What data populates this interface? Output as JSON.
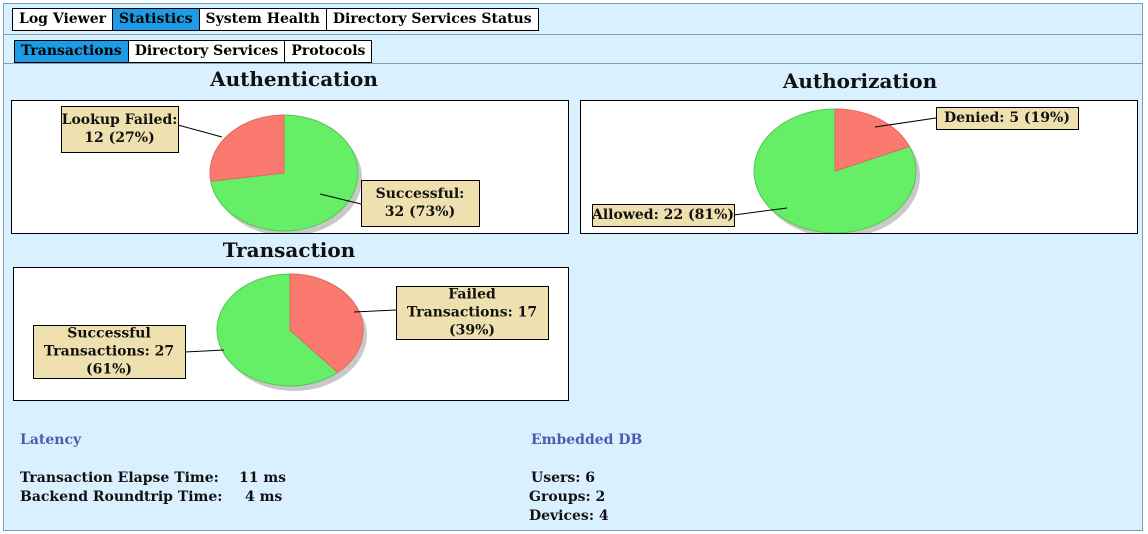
{
  "tabs": {
    "main": [
      {
        "label": "Log Viewer",
        "active": false
      },
      {
        "label": "Statistics",
        "active": true
      },
      {
        "label": "System Health",
        "active": false
      },
      {
        "label": "Directory Services Status",
        "active": false
      }
    ],
    "sub": [
      {
        "label": "Transactions",
        "active": true
      },
      {
        "label": "Directory Services",
        "active": false
      },
      {
        "label": "Protocols",
        "active": false
      }
    ]
  },
  "colors": {
    "success": "#66ee66",
    "failure": "#fa7a6f",
    "callout_bg": "#efe0b0",
    "active_tab": "#1e9be4",
    "section_title": "#4a5db0"
  },
  "chart_data": [
    {
      "type": "pie",
      "title": "Authentication",
      "slices": [
        {
          "label_lines": [
            "Lookup Failed:",
            "12 (27%)"
          ],
          "value": 12,
          "percent": 27,
          "color": "#fa7a6f"
        },
        {
          "label_lines": [
            "Successful:",
            "32 (73%)"
          ],
          "value": 32,
          "percent": 73,
          "color": "#66ee66"
        }
      ]
    },
    {
      "type": "pie",
      "title": "Authorization",
      "slices": [
        {
          "label_lines": [
            "Denied: 5 (19%)"
          ],
          "value": 5,
          "percent": 19,
          "color": "#fa7a6f"
        },
        {
          "label_lines": [
            "Allowed: 22 (81%)"
          ],
          "value": 22,
          "percent": 81,
          "color": "#66ee66"
        }
      ]
    },
    {
      "type": "pie",
      "title": "Transaction",
      "slices": [
        {
          "label_lines": [
            "Failed",
            "Transactions: 17",
            "(39%)"
          ],
          "value": 17,
          "percent": 39,
          "color": "#fa7a6f"
        },
        {
          "label_lines": [
            "Successful",
            "Transactions: 27",
            "(61%)"
          ],
          "value": 27,
          "percent": 61,
          "color": "#66ee66"
        }
      ]
    }
  ],
  "latency": {
    "title": "Latency",
    "rows": [
      {
        "label": "Transaction Elapse Time:",
        "value": "11 ms"
      },
      {
        "label": "Backend Roundtrip Time:",
        "value": "4 ms"
      }
    ]
  },
  "embedded_db": {
    "title": "Embedded DB",
    "rows": [
      {
        "text": "Users: 6"
      },
      {
        "text": "Groups: 2"
      },
      {
        "text": "Devices: 4"
      }
    ]
  }
}
